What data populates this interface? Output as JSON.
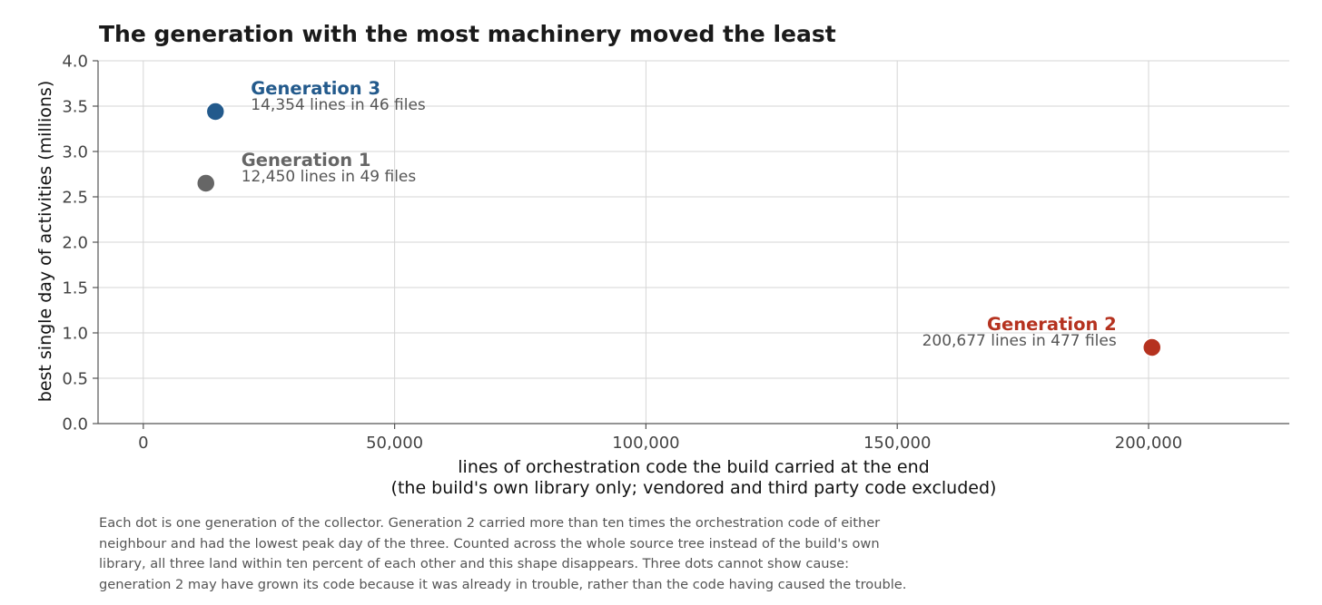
{
  "chart_data": {
    "type": "scatter",
    "title": "The generation with the most machinery moved the least",
    "xlabel_lines": [
      "lines of orchestration code the build carried at the end",
      "(the build's own library only; vendored and third party code excluded)"
    ],
    "ylabel": "best single day of activities  (millions)",
    "xlim": [
      -9000,
      228000
    ],
    "ylim": [
      0,
      4.0
    ],
    "x_ticks": [
      0,
      50000,
      100000,
      150000,
      200000
    ],
    "x_tick_labels": [
      "0",
      "50,000",
      "100,000",
      "150,000",
      "200,000"
    ],
    "y_ticks": [
      0,
      0.5,
      1.0,
      1.5,
      2.0,
      2.5,
      3.0,
      3.5,
      4.0
    ],
    "y_tick_labels": [
      "0.0",
      "0.5",
      "1.0",
      "1.5",
      "2.0",
      "2.5",
      "3.0",
      "3.5",
      "4.0"
    ],
    "grid": true,
    "points": [
      {
        "label": "Generation 1",
        "detail": "12,450 lines in 49 files",
        "x": 12450,
        "y": 2.65,
        "color": "#666666",
        "label_side": "right"
      },
      {
        "label": "Generation 2",
        "detail": "200,677 lines in 477 files",
        "x": 200677,
        "y": 0.84,
        "color": "#b5321f",
        "label_side": "left"
      },
      {
        "label": "Generation 3",
        "detail": "14,354 lines in 46 files",
        "x": 14354,
        "y": 3.44,
        "color": "#235a8c",
        "label_side": "right"
      }
    ]
  },
  "caption_lines": [
    "Each dot is one generation of the collector. Generation 2 carried more than ten times the orchestration code of either",
    "neighbour and had the lowest peak day of the three. Counted across the whole source tree instead of the build's own",
    "library, all three land within ten percent of each other and this shape disappears. Three dots cannot show cause:",
    "generation 2 may have grown its code because it was already in trouble, rather than the code having caused the trouble."
  ]
}
